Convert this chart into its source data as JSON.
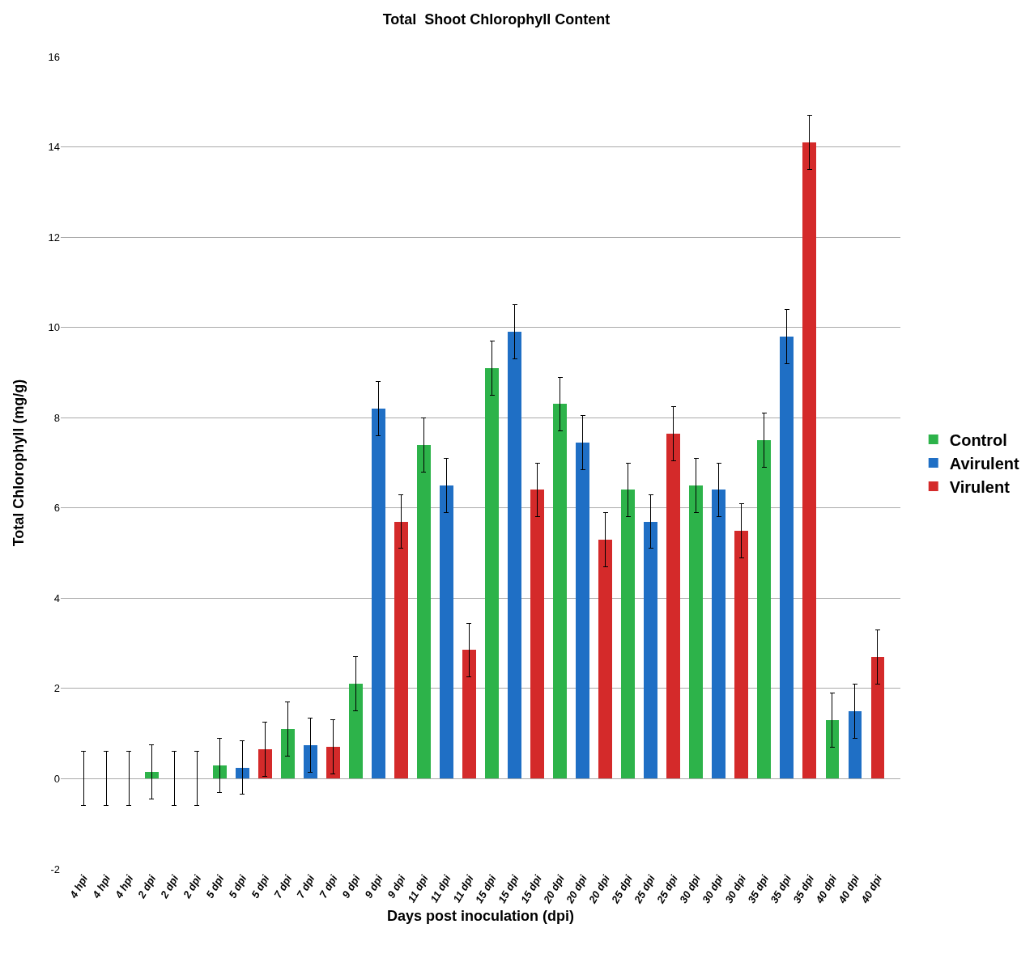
{
  "chart_data": {
    "type": "bar",
    "title": "Total  Shoot Chlorophyll Content",
    "xlabel": "Days post inoculation (dpi)",
    "ylabel": "Total Chlorophyll (mg/g)",
    "categories": [
      "4 hpi",
      "4 hpi",
      "4 hpi",
      "2 dpi",
      "2 dpi",
      "2 dpi",
      "5 dpi",
      "5 dpi",
      "5 dpi",
      "7 dpi",
      "7 dpi",
      "7 dpi",
      "9 dpi",
      "9 dpi",
      "9 dpi",
      "11 dpi",
      "11 dpi",
      "11 dpi",
      "15 dpi",
      "15 dpi",
      "15 dpi",
      "20 dpi",
      "20 dpi",
      "20 dpi",
      "25 dpi",
      "25 dpi",
      "25 dpi",
      "30 dpi",
      "30 dpi",
      "30 dpi",
      "35 dpi",
      "35 dpi",
      "35 dpi",
      "40 dpi",
      "40 dpi",
      "40 dpi"
    ],
    "series": [
      {
        "name": "Control",
        "color": "#2db34a",
        "values": [
          0,
          null,
          null,
          0.15,
          null,
          null,
          0.3,
          null,
          null,
          1.1,
          null,
          null,
          2.1,
          null,
          null,
          7.4,
          null,
          null,
          9.1,
          null,
          null,
          8.3,
          null,
          null,
          6.4,
          null,
          null,
          6.5,
          null,
          null,
          7.5,
          null,
          null,
          1.3,
          null,
          null
        ],
        "errors": [
          0.6,
          null,
          null,
          0.6,
          null,
          null,
          0.6,
          null,
          null,
          0.6,
          null,
          null,
          0.6,
          null,
          null,
          0.6,
          null,
          null,
          0.6,
          null,
          null,
          0.6,
          null,
          null,
          0.6,
          null,
          null,
          0.6,
          null,
          null,
          0.6,
          null,
          null,
          0.6,
          null,
          null
        ]
      },
      {
        "name": "Avirulent",
        "color": "#1f6fc5",
        "values": [
          null,
          0,
          null,
          null,
          0,
          null,
          null,
          0.25,
          null,
          null,
          0.75,
          null,
          null,
          8.2,
          null,
          null,
          6.5,
          null,
          null,
          9.9,
          null,
          null,
          7.45,
          null,
          null,
          5.7,
          null,
          null,
          6.4,
          null,
          null,
          9.8,
          null,
          null,
          1.5,
          null
        ],
        "errors": [
          null,
          0.6,
          null,
          null,
          0.6,
          null,
          null,
          0.6,
          null,
          null,
          0.6,
          null,
          null,
          0.6,
          null,
          null,
          0.6,
          null,
          null,
          0.6,
          null,
          null,
          0.6,
          null,
          null,
          0.6,
          null,
          null,
          0.6,
          null,
          null,
          0.6,
          null,
          null,
          0.6,
          null
        ]
      },
      {
        "name": "Virulent",
        "color": "#d42a2a",
        "values": [
          null,
          null,
          0,
          null,
          null,
          0,
          null,
          null,
          0.65,
          null,
          null,
          0.7,
          null,
          null,
          5.7,
          null,
          null,
          2.85,
          null,
          null,
          6.4,
          null,
          null,
          5.3,
          null,
          null,
          7.65,
          null,
          null,
          5.5,
          null,
          null,
          14.1,
          null,
          null,
          2.7
        ],
        "errors": [
          null,
          null,
          0.6,
          null,
          null,
          0.6,
          null,
          null,
          0.6,
          null,
          null,
          0.6,
          null,
          null,
          0.6,
          null,
          null,
          0.6,
          null,
          null,
          0.6,
          null,
          null,
          0.6,
          null,
          null,
          0.6,
          null,
          null,
          0.6,
          null,
          null,
          0.6,
          null,
          null,
          0.6
        ]
      }
    ],
    "ylim": [
      -2,
      16
    ],
    "yticks": [
      -2,
      0,
      2,
      4,
      6,
      8,
      10,
      12,
      14,
      16
    ],
    "grid": "y",
    "legend": "right"
  }
}
